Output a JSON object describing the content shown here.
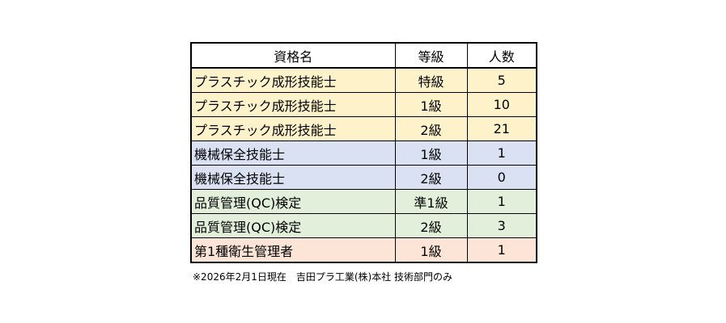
{
  "table": {
    "headers": {
      "name": "資格名",
      "grade": "等級",
      "count": "人数"
    },
    "rows": [
      {
        "group": "plastic",
        "name": "プラスチック成形技能士",
        "grade": "特級",
        "count": "5"
      },
      {
        "group": "plastic",
        "name": "プラスチック成形技能士",
        "grade": "1級",
        "count": "10"
      },
      {
        "group": "plastic",
        "name": "プラスチック成形技能士",
        "grade": "2級",
        "count": "21"
      },
      {
        "group": "machine",
        "name": "機械保全技能士",
        "grade": "1級",
        "count": "1"
      },
      {
        "group": "machine",
        "name": "機械保全技能士",
        "grade": "2級",
        "count": "0"
      },
      {
        "group": "quality",
        "name": "品質管理(QC)検定",
        "grade": "準1級",
        "count": "1"
      },
      {
        "group": "quality",
        "name": "品質管理(QC)検定",
        "grade": "2級",
        "count": "3"
      },
      {
        "group": "health",
        "name": "第1種衛生管理者",
        "grade": "1級",
        "count": "1"
      }
    ],
    "group_colors": {
      "plastic": "#fef2cb",
      "machine": "#d9e1f2",
      "quality": "#e2efda",
      "health": "#fce4d6"
    }
  },
  "footnote": "※2026年2月1日現在　吉田プラ工業(株)本社 技術部門のみ"
}
